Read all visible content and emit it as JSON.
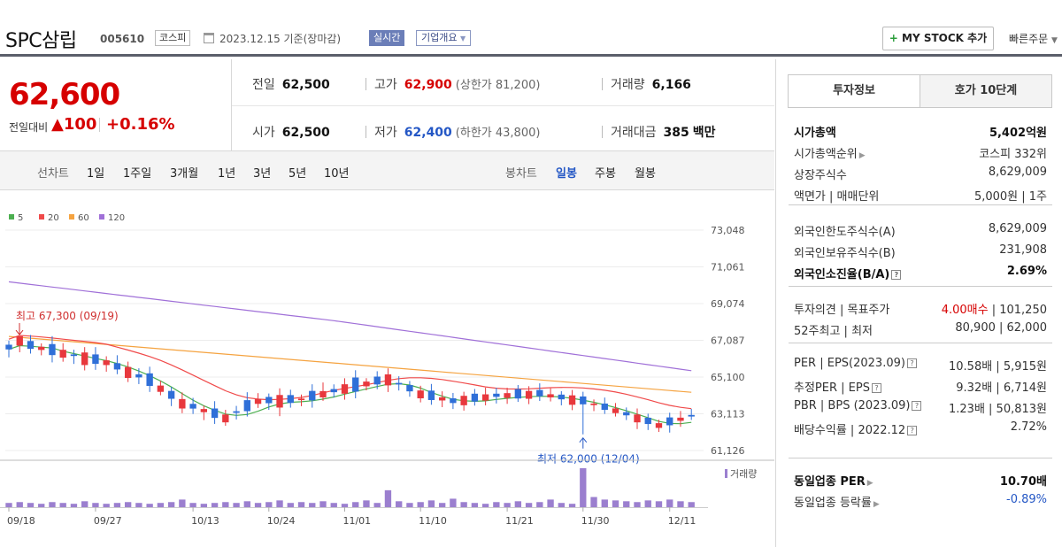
{
  "header": {
    "stock_name": "SPC삼립",
    "stock_code": "005610",
    "market": "코스피",
    "date_text": "2023.12.15 기준(장마감)",
    "realtime_label": "실시간",
    "company_label": "기업개요",
    "mystock_label": "MY STOCK 추가",
    "quick_order_label": "빠른주문"
  },
  "price": {
    "current": "62,600",
    "change_label": "전일대비",
    "change_value": "▲100",
    "change_pct": "+0.16%"
  },
  "summary": {
    "prev_label": "전일",
    "prev_value": "62,500",
    "high_label": "고가",
    "high_value": "62,900",
    "upper_limit": "(상한가 81,200)",
    "volume_label": "거래량",
    "volume_value": "6,166",
    "open_label": "시가",
    "open_value": "62,500",
    "low_label": "저가",
    "low_value": "62,400",
    "lower_limit": "(하한가 43,800)",
    "amount_label": "거래대금",
    "amount_value": "385",
    "amount_unit": "백만"
  },
  "periodbar": {
    "line_chart_label": "선차트",
    "line_periods": [
      "1일",
      "1주일",
      "3개월",
      "1년",
      "3년",
      "5년",
      "10년"
    ],
    "candle_chart_label": "봉차트",
    "candle_periods": [
      "일봉",
      "주봉",
      "월봉"
    ],
    "active_candle": "일봉"
  },
  "chart_data": {
    "type": "candlestick",
    "legend": [
      {
        "name": "5",
        "color": "#4caf50"
      },
      {
        "name": "20",
        "color": "#f04a4a"
      },
      {
        "name": "60",
        "color": "#f5a340"
      },
      {
        "name": "120",
        "color": "#a070d8"
      }
    ],
    "y_ticks": [
      "73,048",
      "71,061",
      "69,074",
      "67,087",
      "65,100",
      "63,113",
      "61,126"
    ],
    "ylim": [
      61126,
      73048
    ],
    "x_ticks": [
      "09/18",
      "09/27",
      "10/13",
      "10/24",
      "11/01",
      "11/10",
      "11/21",
      "11/30",
      "12/11"
    ],
    "annotations": {
      "high_label": "최고 67,300 (09/19)",
      "low_label": "최저 62,000 (12/04)"
    },
    "volume_label": "거래량",
    "colors": {
      "up": "#e8383d",
      "down": "#2f6fd8",
      "volume": "#9b7fcf"
    }
  },
  "right_panel": {
    "tabs": [
      "투자정보",
      "호가 10단계"
    ],
    "rows1": [
      {
        "k": "시가총액",
        "v": "5,402억원",
        "bold": true
      },
      {
        "k": "시가총액순위",
        "v": "코스피 332위",
        "arrow": true
      },
      {
        "k": "상장주식수",
        "v": "8,629,009"
      },
      {
        "k": "액면가 | 매매단위",
        "v": "5,000원 | 1주"
      }
    ],
    "rows2": [
      {
        "k": "외국인한도주식수(A)",
        "v": "8,629,009"
      },
      {
        "k": "외국인보유주식수(B)",
        "v": "231,908"
      },
      {
        "k": "외국인소진율(B/A)",
        "v": "2.69%",
        "bold": true,
        "q": true
      }
    ],
    "rows3": [
      {
        "k": "투자의견 | 목표주가",
        "v_red": "4.00매수",
        "v_rest": " | 101,250"
      },
      {
        "k": "52주최고 | 최저",
        "v": "80,900 | 62,000"
      }
    ],
    "rows4": [
      {
        "k": "PER | EPS(2023.09)",
        "v": "10.58배 | 5,915원",
        "q": true
      },
      {
        "k": "추정PER | EPS",
        "v": "9.32배 | 6,714원",
        "q": true
      },
      {
        "k": "PBR | BPS (2023.09)",
        "v": "1.23배 | 50,813원",
        "q": true
      },
      {
        "k": "배당수익률 | 2022.12",
        "v": "2.72%",
        "q": true
      }
    ],
    "rows5": [
      {
        "k": "동일업종 PER",
        "v": "10.70배",
        "bold": true,
        "arrow": true
      },
      {
        "k": "동일업종 등락률",
        "v_blue": "-0.89%",
        "arrow": true
      }
    ]
  }
}
